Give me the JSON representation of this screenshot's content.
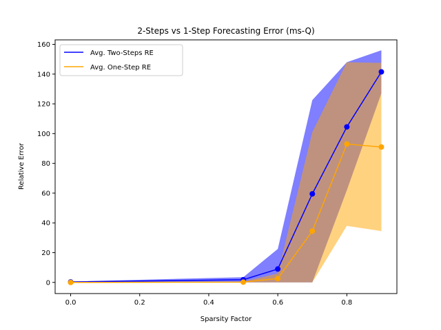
{
  "chart_data": {
    "type": "line",
    "title": "2-Steps vs 1-Step Forecasting Error (ms-Q)",
    "xlabel": "Sparsity Factor",
    "ylabel": "Relative Error",
    "xlim": [
      -0.045,
      0.945
    ],
    "ylim": [
      -7.5,
      163
    ],
    "x_ticks": [
      0.0,
      0.2,
      0.4,
      0.6,
      0.8
    ],
    "x_tick_labels": [
      "0.0",
      "0.2",
      "0.4",
      "0.6",
      "0.8"
    ],
    "y_ticks": [
      0,
      20,
      40,
      60,
      80,
      100,
      120,
      140,
      160
    ],
    "y_tick_labels": [
      "0",
      "20",
      "40",
      "60",
      "80",
      "100",
      "120",
      "140",
      "160"
    ],
    "grid": false,
    "legend_position": "top-left",
    "x": [
      0.0,
      0.5,
      0.6,
      0.7,
      0.8,
      0.9
    ],
    "series": [
      {
        "name": "Avg. Two-Steps RE",
        "color": "#0000ff",
        "band_color": "#0000ff",
        "band_opacity": 0.5,
        "values": [
          0.3,
          1.8,
          9.0,
          59.5,
          104.5,
          141.5
        ],
        "lower": [
          0.0,
          0.0,
          0.0,
          0.0,
          62.0,
          127.0
        ],
        "upper": [
          0.6,
          3.5,
          22.5,
          122.5,
          148.0,
          156.0
        ]
      },
      {
        "name": "Avg. One-Step RE",
        "color": "#ffa500",
        "band_color": "#ffa500",
        "band_opacity": 0.5,
        "values": [
          0.0,
          0.2,
          2.6,
          34.5,
          93.0,
          91.0
        ],
        "lower": [
          0.0,
          0.0,
          0.0,
          0.0,
          38.0,
          34.5
        ],
        "upper": [
          0.1,
          0.5,
          6.0,
          101.0,
          148.0,
          147.5
        ]
      }
    ]
  }
}
